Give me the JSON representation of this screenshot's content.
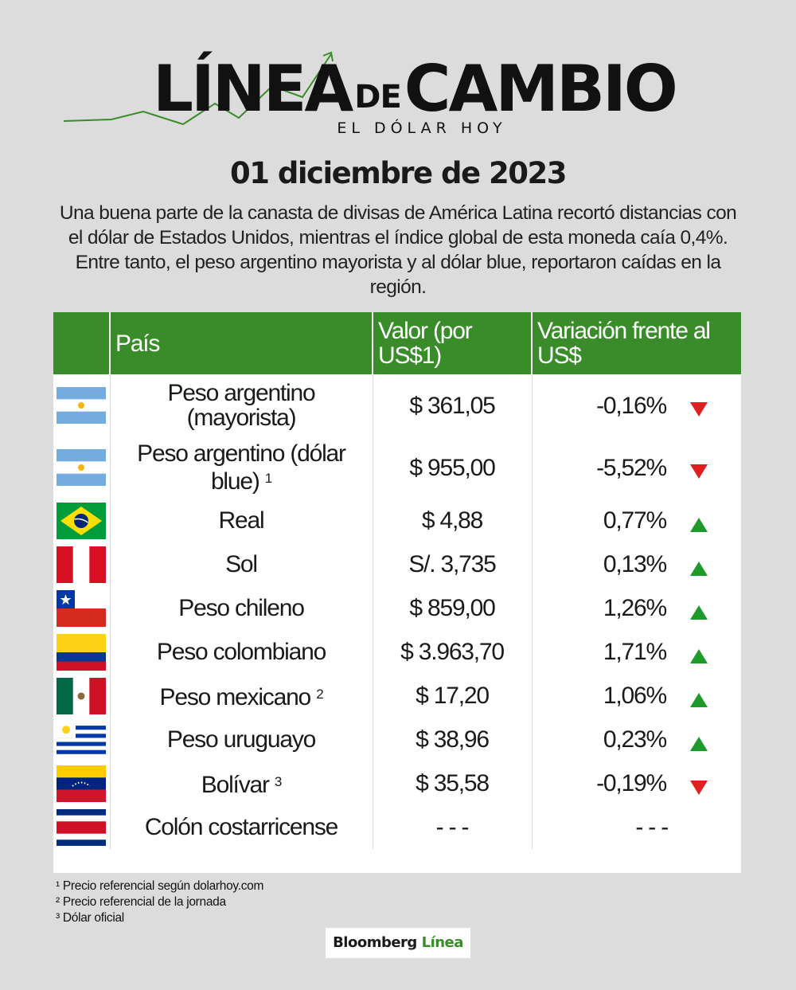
{
  "header": {
    "logo_main": "LÍNEA",
    "logo_de": "DE",
    "logo_cambio": "CAMBIO",
    "logo_sub": "EL DÓLAR HOY",
    "date": "01 diciembre de 2023",
    "intro": "Una buena parte de la canasta de divisas de América Latina recortó distancias con el dólar de Estados Unidos, mientras el índice global de esta moneda caía 0,4%. Entre tanto, el peso argentino mayorista y al dólar blue, reportaron caídas en la región."
  },
  "colors": {
    "green": "#3a8b2a",
    "up": "#1e9a2a",
    "down": "#e02020"
  },
  "table": {
    "headers": [
      "País",
      "Valor (por US$1)",
      "Variación frente al US$"
    ],
    "rows": [
      {
        "flag": "argentina-flag",
        "country": "Peso argentino (mayorista)",
        "sup": "",
        "value": "$ 361,05",
        "variation": "-0,16%",
        "trend": "down"
      },
      {
        "flag": "argentina-flag",
        "country": "Peso argentino (dólar blue)",
        "sup": "1",
        "value": "$ 955,00",
        "variation": "-5,52%",
        "trend": "down"
      },
      {
        "flag": "brazil-flag",
        "country": "Real",
        "sup": "",
        "value": "$ 4,88",
        "variation": "0,77%",
        "trend": "up"
      },
      {
        "flag": "peru-flag",
        "country": "Sol",
        "sup": "",
        "value": "S/. 3,735",
        "variation": "0,13%",
        "trend": "up"
      },
      {
        "flag": "chile-flag",
        "country": "Peso chileno",
        "sup": "",
        "value": "$ 859,00",
        "variation": "1,26%",
        "trend": "up"
      },
      {
        "flag": "colombia-flag",
        "country": "Peso colombiano",
        "sup": "",
        "value": "$ 3.963,70",
        "variation": "1,71%",
        "trend": "up"
      },
      {
        "flag": "mexico-flag",
        "country": "Peso mexicano",
        "sup": "2",
        "value": "$ 17,20",
        "variation": "1,06%",
        "trend": "up"
      },
      {
        "flag": "uruguay-flag",
        "country": "Peso uruguayo",
        "sup": "",
        "value": "$ 38,96",
        "variation": "0,23%",
        "trend": "up"
      },
      {
        "flag": "venezuela-flag",
        "country": "Bolívar",
        "sup": "3",
        "value": "$ 35,58",
        "variation": "-0,19%",
        "trend": "down"
      },
      {
        "flag": "costa-rica-flag",
        "country": "Colón costarricense",
        "sup": "",
        "value": "- - -",
        "variation": "- - -",
        "trend": "none"
      }
    ]
  },
  "footnotes": [
    "¹ Precio referencial según dolarhoy.com",
    "² Precio referencial de la jornada",
    "³ Dólar oficial"
  ],
  "brand": {
    "name": "Bloomberg",
    "suffix": "Línea"
  }
}
